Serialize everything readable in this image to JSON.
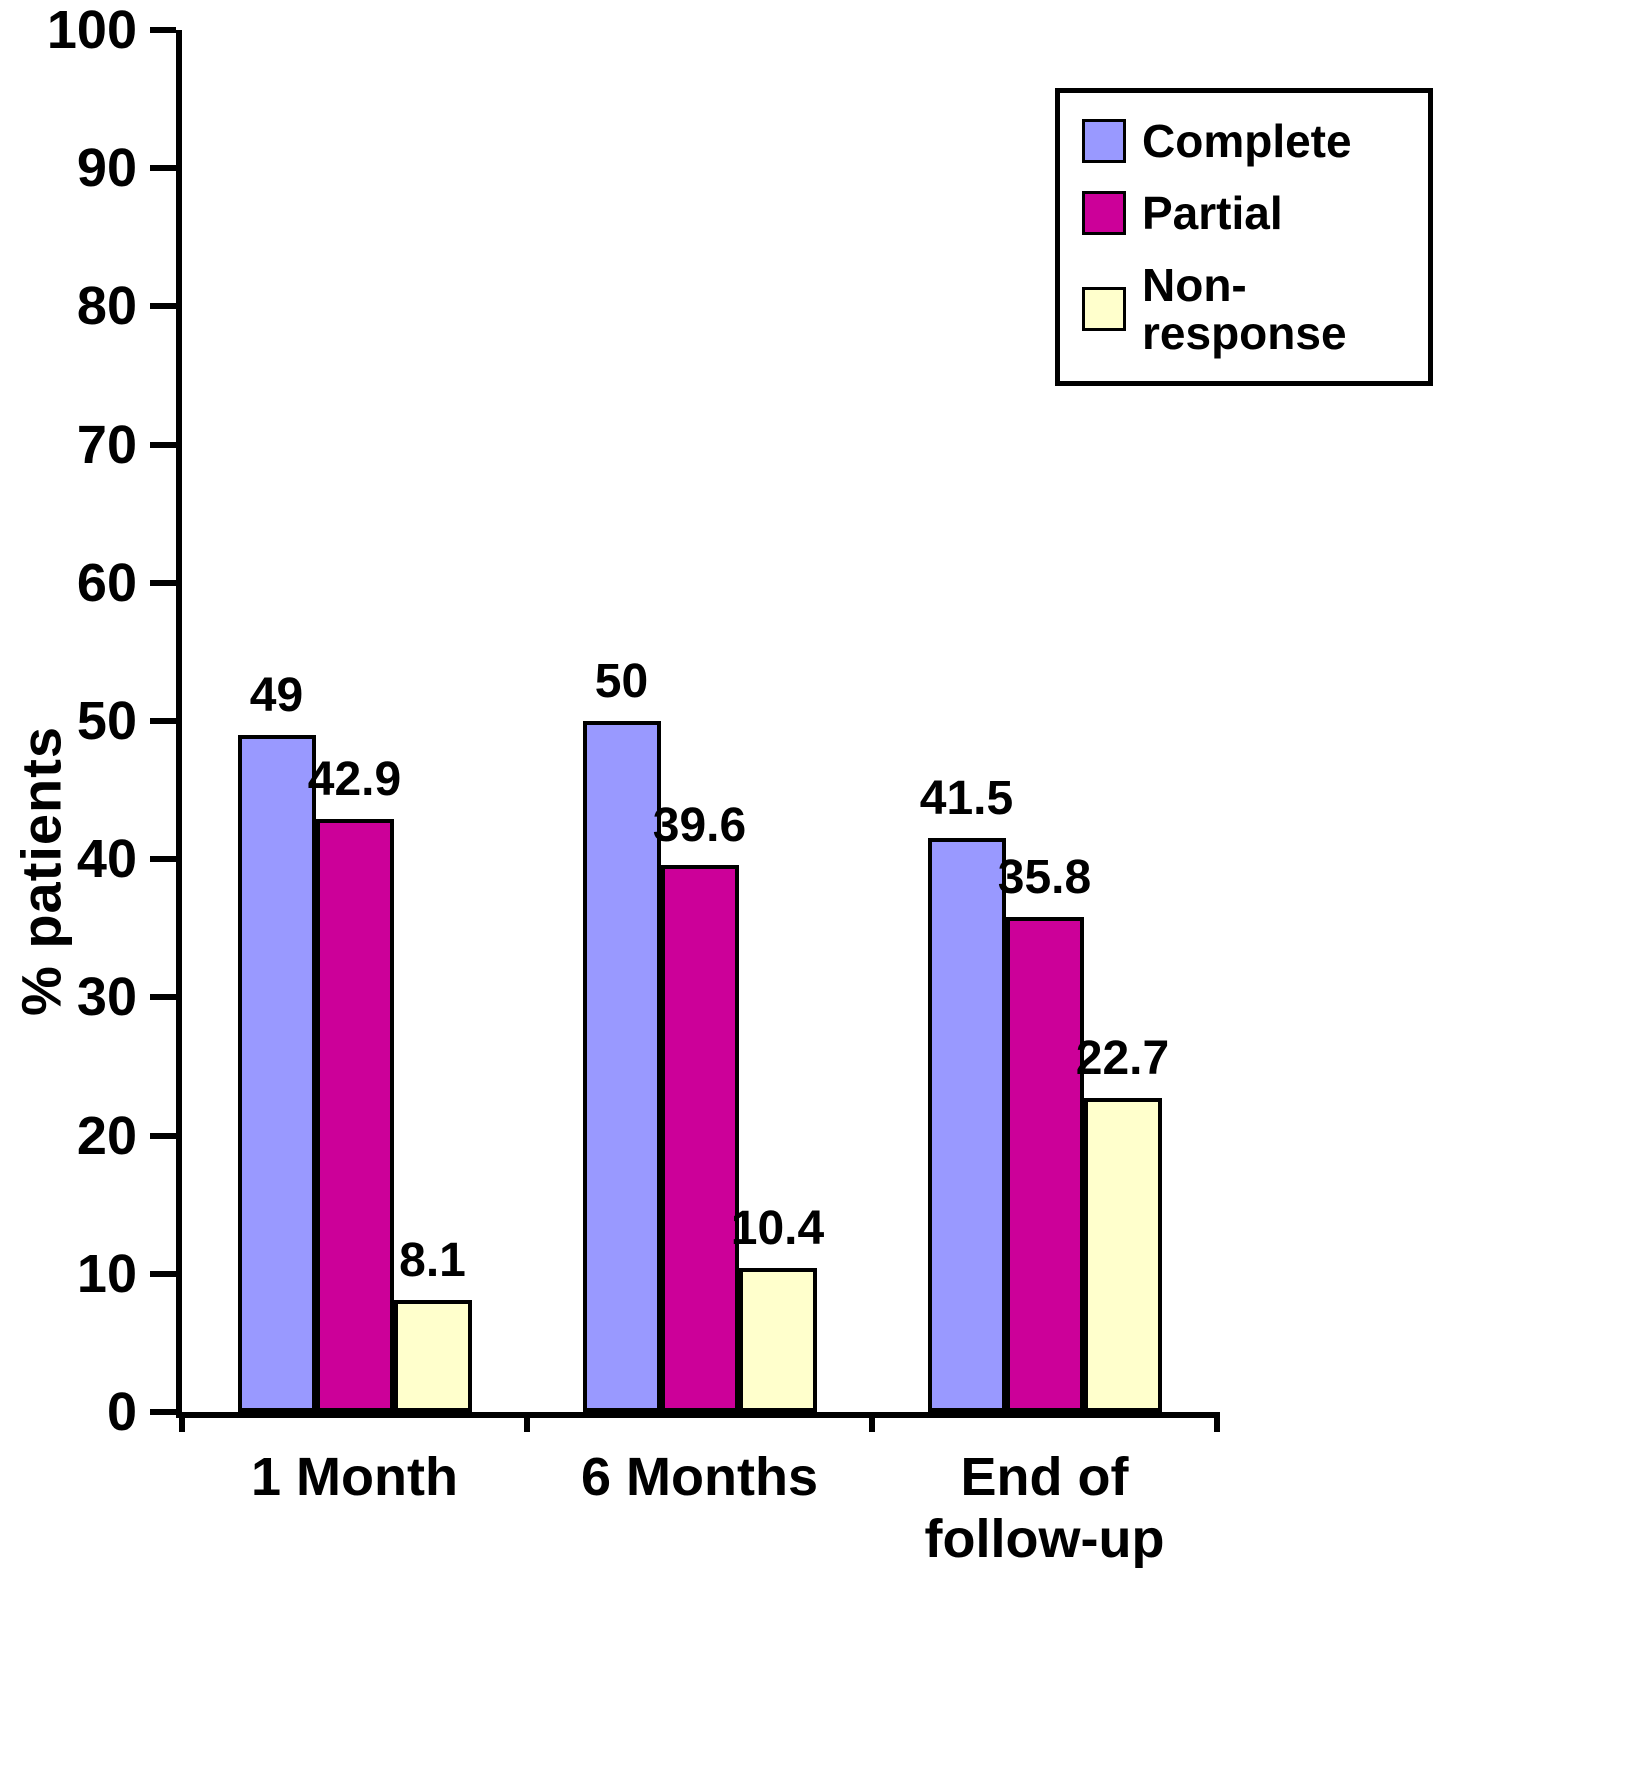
{
  "chart_data": {
    "type": "bar",
    "title": "",
    "xlabel": "",
    "ylabel": "% patients",
    "ylim": [
      0,
      100
    ],
    "ytick_step": 10,
    "grid": false,
    "legend_position": "top-right",
    "categories": [
      "1 Month",
      "6 Months",
      "End of\nfollow-up"
    ],
    "series": [
      {
        "name": "Complete",
        "color": "#9999FF",
        "values": [
          49,
          50,
          41.5
        ]
      },
      {
        "name": "Partial",
        "color": "#CC0099",
        "values": [
          42.9,
          39.6,
          35.8
        ]
      },
      {
        "name": "Non-response",
        "color": "#FFFFCC",
        "values": [
          8.1,
          10.4,
          22.7
        ]
      }
    ]
  }
}
